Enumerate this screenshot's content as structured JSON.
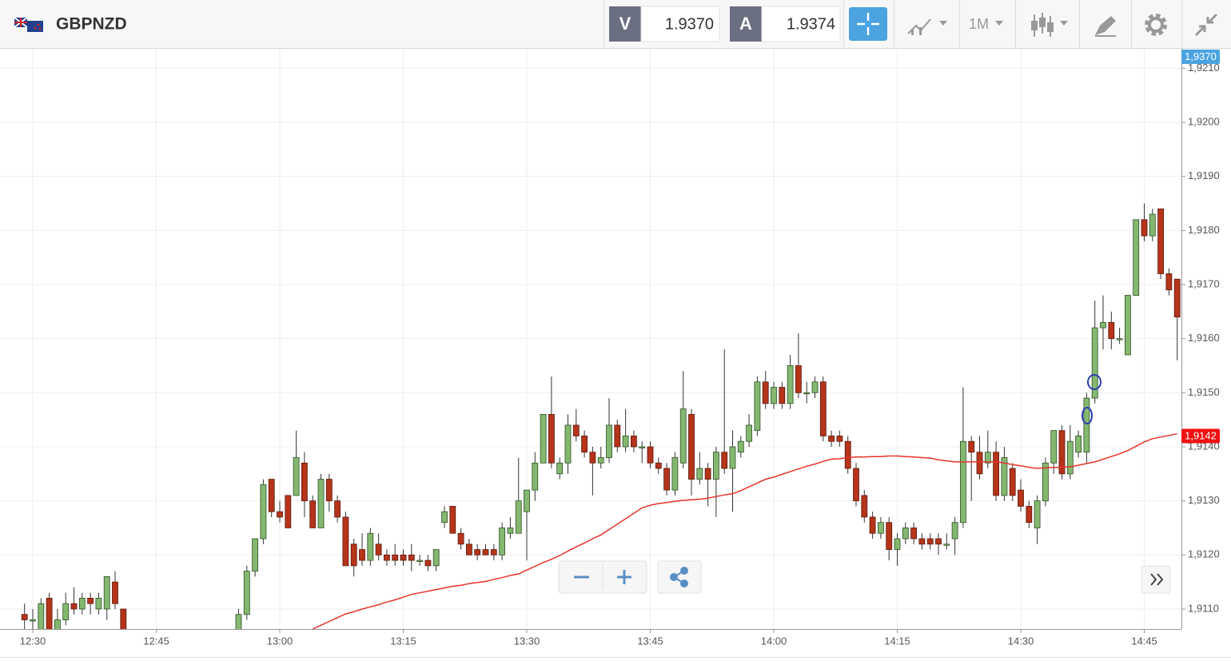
{
  "header": {
    "symbol": "GBPNZD",
    "bid_label": "V",
    "bid": "1.9370",
    "ask_label": "A",
    "ask": "1.9374",
    "timeframe": "1M",
    "bid_tag": "1,9370"
  },
  "chart_data": {
    "type": "candlestick",
    "categories": [
      null,
      "12:30",
      null,
      null,
      null,
      null,
      null,
      null,
      null,
      null,
      null,
      null,
      null,
      null,
      null,
      null,
      "12:45",
      null,
      null,
      null,
      null,
      null,
      null,
      null,
      null,
      null,
      null,
      null,
      null,
      null,
      null,
      "13:00",
      null,
      null,
      null,
      null,
      null,
      null,
      null,
      null,
      null,
      null,
      null,
      null,
      null,
      null,
      "13:15",
      null,
      null,
      null,
      null,
      null,
      null,
      null,
      null,
      null,
      null,
      null,
      null,
      null,
      null,
      "13:30",
      null,
      null,
      null,
      null,
      null,
      null,
      null,
      null,
      null,
      null,
      null,
      null,
      null,
      null,
      "13:45",
      null,
      null,
      null,
      null,
      null,
      null,
      null,
      null,
      null,
      null,
      null,
      null,
      null,
      null,
      "14:00",
      null,
      null,
      null,
      null,
      null,
      null,
      null,
      null,
      null,
      null,
      null,
      null,
      null,
      null,
      "14:15",
      null,
      null,
      null,
      null,
      null,
      null,
      null,
      null,
      null,
      null,
      null,
      null,
      null,
      null,
      "14:30",
      null,
      null,
      null,
      null,
      null,
      null,
      null,
      null,
      null,
      null,
      null,
      null,
      null,
      null,
      "14:45",
      null,
      null,
      null,
      null
    ],
    "ohlc": [
      [
        1.9109,
        1.9111,
        1.9106,
        1.9108
      ],
      [
        1.9108,
        1.911,
        1.9105,
        1.9108
      ],
      [
        1.9106,
        1.9112,
        1.9105,
        1.9111
      ],
      [
        1.9112,
        1.9113,
        1.9105,
        1.9106
      ],
      [
        1.9106,
        1.911,
        1.9105,
        1.9108
      ],
      [
        1.9108,
        1.9113,
        1.9107,
        1.9111
      ],
      [
        1.9111,
        1.9114,
        1.9109,
        1.911
      ],
      [
        1.911,
        1.9113,
        1.9109,
        1.9112
      ],
      [
        1.9112,
        1.9113,
        1.9109,
        1.9111
      ],
      [
        1.911,
        1.9113,
        1.9109,
        1.9112
      ],
      [
        1.911,
        1.9116,
        1.9108,
        1.9116
      ],
      [
        1.9115,
        1.9117,
        1.911,
        1.9111
      ],
      [
        1.911,
        1.911,
        1.9104,
        1.9105
      ],
      null,
      null,
      null,
      null,
      null,
      null,
      null,
      null,
      null,
      null,
      null,
      null,
      null,
      [
        1.9105,
        1.911,
        1.9104,
        1.9109
      ],
      [
        1.9109,
        1.9118,
        1.9108,
        1.9117
      ],
      [
        1.9117,
        1.9123,
        1.9116,
        1.9123
      ],
      [
        1.9123,
        1.9134,
        1.9122,
        1.9133
      ],
      [
        1.9134,
        1.9134,
        1.9127,
        1.9128
      ],
      [
        1.9128,
        1.913,
        1.9126,
        1.9127
      ],
      [
        1.9131,
        1.9131,
        1.9125,
        1.9125
      ],
      [
        1.9131,
        1.9143,
        1.9131,
        1.9138
      ],
      [
        1.9137,
        1.9139,
        1.9127,
        1.913
      ],
      [
        1.913,
        1.9131,
        1.9125,
        1.9125
      ],
      [
        1.9125,
        1.9135,
        1.9125,
        1.9134
      ],
      [
        1.9134,
        1.9135,
        1.9128,
        1.913
      ],
      [
        1.913,
        1.9131,
        1.9126,
        1.9127
      ],
      [
        1.9127,
        1.9128,
        1.9118,
        1.9118
      ],
      [
        1.9122,
        1.9123,
        1.9116,
        1.9118
      ],
      [
        1.9121,
        1.9124,
        1.9118,
        1.9119
      ],
      [
        1.9119,
        1.9125,
        1.9118,
        1.9124
      ],
      [
        1.9122,
        1.9124,
        1.9119,
        1.912
      ],
      [
        1.912,
        1.9121,
        1.9118,
        1.9119
      ],
      [
        1.912,
        1.9122,
        1.9118,
        1.9119
      ],
      [
        1.912,
        1.9121,
        1.9118,
        1.9119
      ],
      [
        1.912,
        1.9122,
        1.9117,
        1.9119
      ],
      [
        1.9119,
        1.912,
        1.9118,
        1.9119
      ],
      [
        1.9119,
        1.912,
        1.9117,
        1.9118
      ],
      [
        1.9118,
        1.9121,
        1.9117,
        1.9121
      ],
      [
        1.9126,
        1.9129,
        1.9125,
        1.9128
      ],
      [
        1.9129,
        1.9129,
        1.9124,
        1.9124
      ],
      [
        1.9124,
        1.9125,
        1.9121,
        1.9122
      ],
      [
        1.9122,
        1.9123,
        1.912,
        1.912
      ],
      [
        1.9121,
        1.9122,
        1.9119,
        1.912
      ],
      [
        1.9121,
        1.9122,
        1.912,
        1.912
      ],
      [
        1.9121,
        1.9122,
        1.9119,
        1.912
      ],
      [
        1.912,
        1.9126,
        1.9119,
        1.9125
      ],
      [
        1.9124,
        1.9127,
        1.9123,
        1.9125
      ],
      [
        1.9124,
        1.9138,
        1.9124,
        1.913
      ],
      [
        1.9128,
        1.9132,
        1.9119,
        1.9132
      ],
      [
        1.9132,
        1.9139,
        1.913,
        1.9137
      ],
      [
        1.9137,
        1.9146,
        1.9137,
        1.9146
      ],
      [
        1.9146,
        1.9153,
        1.9136,
        1.9137
      ],
      [
        1.9135,
        1.9138,
        1.9134,
        1.9137
      ],
      [
        1.9137,
        1.9146,
        1.9135,
        1.9144
      ],
      [
        1.9144,
        1.9147,
        1.9141,
        1.9142
      ],
      [
        1.9142,
        1.9143,
        1.9138,
        1.9139
      ],
      [
        1.9139,
        1.914,
        1.9131,
        1.9137
      ],
      [
        1.9137,
        1.914,
        1.9136,
        1.9138
      ],
      [
        1.9138,
        1.9149,
        1.9137,
        1.9144
      ],
      [
        1.9144,
        1.9145,
        1.9139,
        1.914
      ],
      [
        1.914,
        1.9147,
        1.9139,
        1.9142
      ],
      [
        1.9142,
        1.9143,
        1.9139,
        1.914
      ],
      [
        1.914,
        1.9141,
        1.9137,
        1.914
      ],
      [
        1.914,
        1.9141,
        1.9136,
        1.9137
      ],
      [
        1.9137,
        1.9138,
        1.9135,
        1.9136
      ],
      [
        1.9136,
        1.9137,
        1.9131,
        1.9132
      ],
      [
        1.9132,
        1.9139,
        1.9131,
        1.9138
      ],
      [
        1.9137,
        1.9154,
        1.9136,
        1.9147
      ],
      [
        1.9146,
        1.9147,
        1.9131,
        1.9134
      ],
      [
        1.9134,
        1.9139,
        1.9133,
        1.9136
      ],
      [
        1.9136,
        1.9137,
        1.9129,
        1.9134
      ],
      [
        1.9134,
        1.914,
        1.9127,
        1.9139
      ],
      [
        1.9139,
        1.9158,
        1.9135,
        1.9136
      ],
      [
        1.9136,
        1.9143,
        1.9128,
        1.914
      ],
      [
        1.9139,
        1.9142,
        1.9138,
        1.9141
      ],
      [
        1.9141,
        1.9146,
        1.914,
        1.9144
      ],
      [
        1.9143,
        1.9153,
        1.9142,
        1.9152
      ],
      [
        1.9152,
        1.9154,
        1.9147,
        1.9148
      ],
      [
        1.9148,
        1.9152,
        1.9147,
        1.9151
      ],
      [
        1.9151,
        1.9152,
        1.9147,
        1.9148
      ],
      [
        1.9148,
        1.9157,
        1.9147,
        1.9155
      ],
      [
        1.9155,
        1.9161,
        1.9149,
        1.915
      ],
      [
        1.915,
        1.9152,
        1.9148,
        1.915
      ],
      [
        1.915,
        1.9153,
        1.9149,
        1.9152
      ],
      [
        1.9152,
        1.9153,
        1.9141,
        1.9142
      ],
      [
        1.9142,
        1.9143,
        1.914,
        1.9141
      ],
      [
        1.9142,
        1.9143,
        1.914,
        1.9141
      ],
      [
        1.9141,
        1.9142,
        1.9135,
        1.9136
      ],
      [
        1.9136,
        1.9137,
        1.9129,
        1.913
      ],
      [
        1.9131,
        1.9132,
        1.9126,
        1.9127
      ],
      [
        1.9127,
        1.9128,
        1.9123,
        1.9124
      ],
      [
        1.9124,
        1.9127,
        1.9123,
        1.9126
      ],
      [
        1.9126,
        1.9127,
        1.9119,
        1.9121
      ],
      [
        1.9121,
        1.9124,
        1.9118,
        1.9123
      ],
      [
        1.9123,
        1.9126,
        1.9122,
        1.9125
      ],
      [
        1.9125,
        1.9126,
        1.9122,
        1.9123
      ],
      [
        1.9123,
        1.9124,
        1.9121,
        1.9122
      ],
      [
        1.9123,
        1.9124,
        1.9121,
        1.9122
      ],
      [
        1.9123,
        1.9124,
        1.912,
        1.9122
      ],
      [
        1.9122,
        1.9124,
        1.9121,
        1.9122
      ],
      [
        1.9123,
        1.9127,
        1.912,
        1.9126
      ],
      [
        1.9126,
        1.9151,
        1.9125,
        1.9141
      ],
      [
        1.9141,
        1.9142,
        1.913,
        1.9139
      ],
      [
        1.9139,
        1.9142,
        1.9134,
        1.9135
      ],
      [
        1.9137,
        1.9143,
        1.9136,
        1.9139
      ],
      [
        1.9139,
        1.9141,
        1.913,
        1.9131
      ],
      [
        1.9131,
        1.914,
        1.913,
        1.9138
      ],
      [
        1.9136,
        1.9137,
        1.913,
        1.9131
      ],
      [
        1.9132,
        1.9134,
        1.9128,
        1.9129
      ],
      [
        1.9129,
        1.913,
        1.9125,
        1.9126
      ],
      [
        1.9125,
        1.9131,
        1.9122,
        1.913
      ],
      [
        1.913,
        1.9138,
        1.9129,
        1.9137
      ],
      [
        1.9137,
        1.9143,
        1.9135,
        1.9143
      ],
      [
        1.9143,
        1.9144,
        1.9134,
        1.9135
      ],
      [
        1.9135,
        1.9144,
        1.9134,
        1.9141
      ],
      [
        1.9139,
        1.9143,
        1.9138,
        1.9142
      ],
      [
        1.9139,
        1.915,
        1.9137,
        1.9149
      ],
      [
        1.9149,
        1.9167,
        1.9148,
        1.9162
      ],
      [
        1.9162,
        1.9168,
        1.9158,
        1.9163
      ],
      [
        1.9163,
        1.9165,
        1.9158,
        1.916
      ],
      [
        1.916,
        1.9162,
        1.9159,
        1.916
      ],
      [
        1.9157,
        1.9168,
        1.9157,
        1.9168
      ],
      [
        1.9168,
        1.9182,
        1.9168,
        1.9182
      ],
      [
        1.9182,
        1.9185,
        1.9178,
        1.9179
      ],
      [
        1.9179,
        1.9184,
        1.9178,
        1.9183
      ],
      [
        1.9184,
        1.9184,
        1.9171,
        1.9172
      ],
      [
        1.9172,
        1.9173,
        1.9168,
        1.9169
      ],
      [
        1.9171,
        1.9171,
        1.9156,
        1.9164
      ]
    ],
    "up_color": "#84b870",
    "down_color": "#b5341a",
    "series": [
      {
        "color": "#e8332a",
        "values": [
          null,
          null,
          null,
          null,
          null,
          null,
          null,
          null,
          null,
          null,
          null,
          null,
          null,
          null,
          null,
          null,
          null,
          null,
          null,
          null,
          null,
          null,
          null,
          null,
          null,
          null,
          null,
          null,
          null,
          null,
          null,
          null,
          null,
          null,
          null,
          1.91063,
          1.9107,
          1.91077,
          1.91084,
          1.91091,
          1.91095,
          1.911,
          1.91104,
          1.91108,
          1.91113,
          1.91117,
          1.91122,
          1.91127,
          1.9113,
          1.91133,
          1.91136,
          1.91139,
          1.91142,
          1.91144,
          1.91147,
          1.91149,
          1.91151,
          1.91155,
          1.91158,
          1.91162,
          1.91165,
          1.91172,
          1.91179,
          1.91186,
          1.91192,
          1.91199,
          1.91207,
          1.91215,
          1.91222,
          1.9123,
          1.91237,
          1.91247,
          1.91257,
          1.91267,
          1.91277,
          1.91287,
          1.91292,
          1.91295,
          1.91297,
          1.91299,
          1.91301,
          1.91302,
          1.91303,
          1.91305,
          1.91308,
          1.91311,
          1.91313,
          1.91319,
          1.91326,
          1.91333,
          1.9134,
          1.91344,
          1.91349,
          1.91354,
          1.91359,
          1.91364,
          1.91368,
          1.91373,
          1.91377,
          1.91378,
          1.9138,
          1.91381,
          1.91381,
          1.91382,
          1.91382,
          1.91383,
          1.91383,
          1.91382,
          1.91381,
          1.9138,
          1.91379,
          1.91376,
          1.91374,
          1.91372,
          1.91372,
          1.91372,
          1.91372,
          1.91372,
          1.91372,
          1.9137,
          1.91367,
          1.91365,
          1.91362,
          1.9136,
          1.91361,
          1.91362,
          1.91362,
          1.91363,
          1.91366,
          1.91369,
          1.91372,
          1.91377,
          1.91382,
          1.91387,
          1.91393,
          1.91401,
          1.91409,
          1.91415,
          1.91418,
          1.91421,
          1.91424
        ]
      }
    ],
    "last_tag": {
      "value": 1.9142,
      "label": "1,9142",
      "color": "#ee1111"
    },
    "ylim": [
      1.91063,
      1.92136
    ],
    "yticks": [
      {
        "value": 1.911,
        "label": "1,9110"
      },
      {
        "value": 1.912,
        "label": "1,9120"
      },
      {
        "value": 1.913,
        "label": "1,9130"
      },
      {
        "value": 1.914,
        "label": "1,9140"
      },
      {
        "value": 1.915,
        "label": "1,9150"
      },
      {
        "value": 1.916,
        "label": "1,9160"
      },
      {
        "value": 1.917,
        "label": "1,9170"
      },
      {
        "value": 1.918,
        "label": "1,9180"
      },
      {
        "value": 1.919,
        "label": "1,9190"
      },
      {
        "value": 1.92,
        "label": "1,9200"
      },
      {
        "value": 1.921,
        "label": "1,9210"
      }
    ],
    "grid": true
  }
}
